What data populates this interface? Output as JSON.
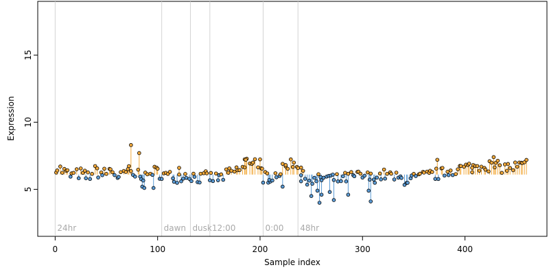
{
  "chart_data": {
    "type": "scatter",
    "title": "",
    "xlabel": "Sample index",
    "ylabel": "Expression",
    "xlim": [
      -17,
      480
    ],
    "ylim": [
      1.5,
      19.0
    ],
    "x_ticks": [
      0,
      100,
      200,
      300,
      400
    ],
    "y_ticks": [
      5,
      10,
      15
    ],
    "baseline": 6.1,
    "colors": {
      "above": "#f2a93b",
      "below": "#5b9bd5",
      "point_stroke": "#000000",
      "marker_line": "#d3d3d3",
      "marker_text": "#a9a9a9"
    },
    "markers": [
      {
        "x": 0,
        "label": "24hr"
      },
      {
        "x": 104,
        "label": "dawn"
      },
      {
        "x": 132,
        "label": "dusk"
      },
      {
        "x": 151,
        "label": "12:00"
      },
      {
        "x": 203,
        "label": "0:00"
      },
      {
        "x": 237,
        "label": "48hr"
      }
    ],
    "segments": [
      {
        "x0": 0,
        "x1": 70,
        "levels": [
          6.7,
          6.3,
          6.0,
          6.2,
          5.9,
          6.4,
          6.1,
          6.5,
          5.8,
          6.3
        ]
      },
      {
        "x0": 70,
        "x1": 100,
        "levels": [
          6.5,
          6.0,
          6.3,
          5.8,
          6.4,
          6.2
        ]
      },
      {
        "x0": 100,
        "x1": 150,
        "levels": [
          6.3,
          6.0,
          5.9,
          6.1,
          6.0,
          5.8,
          6.0
        ]
      },
      {
        "x0": 150,
        "x1": 185,
        "levels": [
          5.9,
          5.8,
          6.1,
          6.4,
          6.6
        ]
      },
      {
        "x0": 185,
        "x1": 200,
        "levels": [
          7.0,
          7.2,
          6.9
        ]
      },
      {
        "x0": 200,
        "x1": 225,
        "levels": [
          6.2,
          5.9,
          6.2,
          6.6
        ]
      },
      {
        "x0": 225,
        "x1": 240,
        "levels": [
          6.9,
          7.0,
          6.8
        ]
      },
      {
        "x0": 240,
        "x1": 310,
        "levels": [
          6.0,
          5.6,
          5.9,
          5.7,
          5.9,
          6.0,
          5.8
        ]
      },
      {
        "x0": 310,
        "x1": 380,
        "levels": [
          5.9,
          6.1,
          5.8,
          5.7,
          5.9,
          6.1,
          6.2
        ]
      },
      {
        "x0": 380,
        "x1": 420,
        "levels": [
          6.3,
          6.5,
          6.6,
          6.7,
          6.9
        ]
      },
      {
        "x0": 420,
        "x1": 462,
        "levels": [
          6.8,
          6.7,
          6.6,
          6.7,
          6.9
        ]
      }
    ],
    "outliers": [
      {
        "x": 74,
        "y": 8.3
      },
      {
        "x": 82,
        "y": 7.7
      },
      {
        "x": 85,
        "y": 5.2
      },
      {
        "x": 87,
        "y": 5.1
      },
      {
        "x": 96,
        "y": 5.1
      },
      {
        "x": 121,
        "y": 6.6
      },
      {
        "x": 186,
        "y": 7.2
      },
      {
        "x": 203,
        "y": 5.5
      },
      {
        "x": 209,
        "y": 5.7
      },
      {
        "x": 222,
        "y": 5.2
      },
      {
        "x": 240,
        "y": 5.6
      },
      {
        "x": 250,
        "y": 4.5
      },
      {
        "x": 256,
        "y": 4.9
      },
      {
        "x": 258,
        "y": 4.0
      },
      {
        "x": 260,
        "y": 4.6
      },
      {
        "x": 268,
        "y": 4.8
      },
      {
        "x": 272,
        "y": 4.2
      },
      {
        "x": 286,
        "y": 4.6
      },
      {
        "x": 308,
        "y": 4.1
      },
      {
        "x": 306,
        "y": 4.9
      },
      {
        "x": 373,
        "y": 7.2
      },
      {
        "x": 407,
        "y": 6.6
      },
      {
        "x": 428,
        "y": 7.4
      }
    ]
  }
}
